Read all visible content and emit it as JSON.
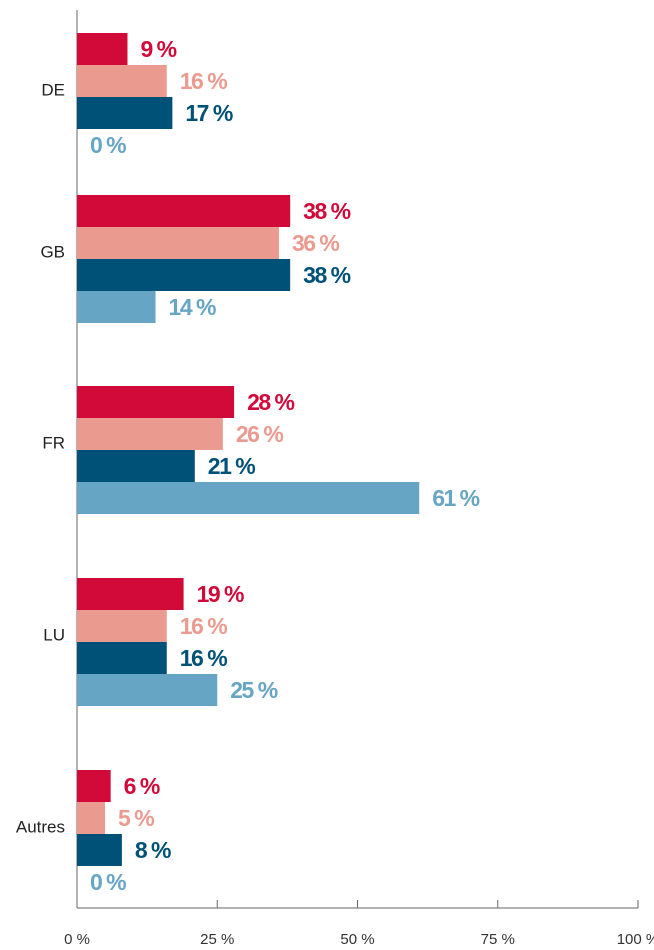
{
  "chart_data": {
    "type": "barh",
    "categories": [
      "DE",
      "GB",
      "FR",
      "LU",
      "Autres"
    ],
    "series": [
      {
        "color": "#d20a3a",
        "values": [
          9,
          38,
          28,
          19,
          6
        ],
        "value_labels": [
          "9 %",
          "38 %",
          "28 %",
          "19 %",
          "6 %"
        ]
      },
      {
        "color": "#eb9a8f",
        "values": [
          16,
          36,
          26,
          16,
          5
        ],
        "value_labels": [
          "16 %",
          "36 %",
          "26 %",
          "16 %",
          "5 %"
        ]
      },
      {
        "color": "#005178",
        "values": [
          17,
          38,
          21,
          16,
          8
        ],
        "value_labels": [
          "17 %",
          "38 %",
          "21 %",
          "16 %",
          "8 %"
        ]
      },
      {
        "color": "#67a5c4",
        "values": [
          0,
          14,
          61,
          25,
          0
        ],
        "value_labels": [
          "0 %",
          "14 %",
          "61 %",
          "25 %",
          "0 %"
        ]
      }
    ],
    "xlim": [
      0,
      100
    ],
    "xticks": [
      {
        "value": 0,
        "label": "0 %"
      },
      {
        "value": 25,
        "label": "25 %"
      },
      {
        "value": 50,
        "label": "50 %"
      },
      {
        "value": 75,
        "label": "75 %"
      },
      {
        "value": 100,
        "label": "100 %"
      }
    ]
  }
}
